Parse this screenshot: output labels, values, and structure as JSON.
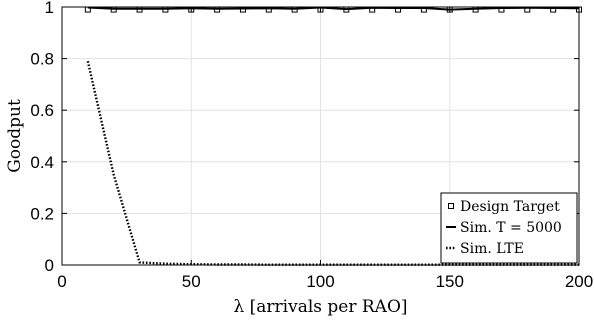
{
  "chart_data": {
    "type": "line",
    "xlabel": "λ [arrivals per RAO]",
    "ylabel": "Goodput",
    "xlim": [
      0,
      200
    ],
    "ylim": [
      0,
      1
    ],
    "xticks": [
      0,
      50,
      100,
      150,
      200
    ],
    "yticks": [
      0,
      0.2,
      0.4,
      0.6,
      0.8,
      1
    ],
    "xtick_labels": [
      "0",
      "50",
      "100",
      "150",
      "200"
    ],
    "ytick_labels": [
      "0",
      "0.2",
      "0.4",
      "0.6",
      "0.8",
      "1"
    ],
    "grid": true,
    "legend_position": "bottom-right",
    "series": [
      {
        "name": "Design Target",
        "style": "square-markers",
        "color": "#000000",
        "x": [
          10,
          20,
          30,
          40,
          50,
          60,
          70,
          80,
          90,
          100,
          110,
          120,
          130,
          140,
          150,
          160,
          170,
          180,
          190,
          200
        ],
        "y": [
          0.99,
          0.99,
          0.99,
          0.99,
          0.99,
          0.99,
          0.99,
          0.99,
          0.99,
          0.99,
          0.99,
          0.99,
          0.99,
          0.99,
          0.99,
          0.99,
          0.99,
          0.99,
          0.99,
          0.99
        ]
      },
      {
        "name": "Sim. T = 5000",
        "style": "solid",
        "color": "#000000",
        "x": [
          10,
          20,
          30,
          40,
          50,
          60,
          70,
          80,
          90,
          100,
          110,
          120,
          130,
          140,
          150,
          160,
          170,
          180,
          190,
          200
        ],
        "y": [
          0.998,
          0.993,
          0.993,
          0.993,
          0.995,
          0.993,
          0.994,
          0.995,
          0.993,
          0.998,
          0.992,
          0.997,
          0.996,
          0.996,
          0.99,
          0.993,
          0.996,
          0.997,
          0.996,
          0.995
        ]
      },
      {
        "name": "Sim. LTE",
        "style": "dotted",
        "color": "#000000",
        "x": [
          10,
          20,
          30,
          40,
          50,
          60,
          70,
          80,
          90,
          100,
          110,
          120,
          130,
          140,
          150,
          160,
          170,
          180,
          190,
          200
        ],
        "y": [
          0.79,
          0.35,
          0.01,
          0.005,
          0.003,
          0.002,
          0.002,
          0.001,
          0.001,
          0.001,
          0.001,
          0.001,
          0.001,
          0.001,
          0.001,
          0.001,
          0.001,
          0.001,
          0.001,
          0.001
        ]
      }
    ]
  }
}
